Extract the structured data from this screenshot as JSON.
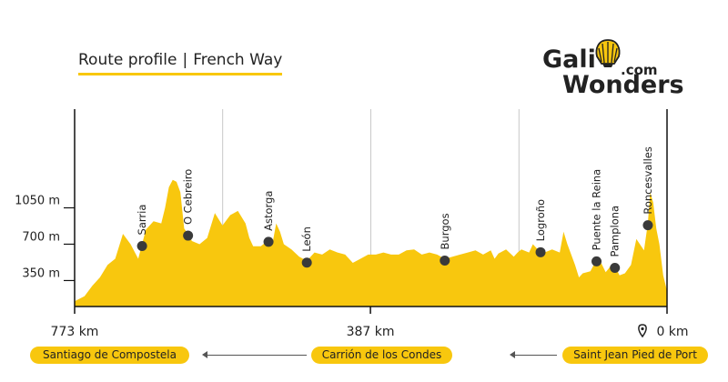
{
  "title_left": "Route profile",
  "title_sep": "|",
  "title_right": "French Way",
  "logo": {
    "word1": "Gali",
    "word2": "Wonders",
    "suffix": ".com"
  },
  "colors": {
    "fill": "#F8C70E",
    "marker": "#3A3A3A",
    "axis": "#111111",
    "grid": "#BBBBBB"
  },
  "route": {
    "start": "Saint Jean Pied de Port",
    "middle": "Carrión de los Condes",
    "end": "Santiago de Compostela"
  },
  "chart_data": {
    "type": "area",
    "x_axis": {
      "reversed": true,
      "range_km": [
        0,
        773
      ],
      "ticks": [
        773,
        387,
        0
      ],
      "tick_labels": [
        "773 km",
        "387 km",
        "0 km"
      ],
      "zero_icon": "location-pin-icon"
    },
    "y_axis": {
      "ticks": [
        350,
        700,
        1050
      ],
      "tick_labels": [
        "350 m",
        "700 m",
        "1050 m"
      ],
      "range_m": [
        100,
        2000
      ]
    },
    "grid": true,
    "profile": {
      "km": [
        0,
        5,
        10,
        14,
        18,
        22,
        25,
        30,
        40,
        47,
        55,
        62,
        70,
        80,
        90,
        100,
        110,
        115,
        120,
        125,
        130,
        135,
        140,
        150,
        160,
        170,
        175,
        180,
        190,
        195,
        200,
        210,
        220,
        225,
        230,
        240,
        250,
        260,
        270,
        280,
        290,
        300,
        310,
        320,
        330,
        340,
        350,
        360,
        370,
        380,
        390,
        400,
        410,
        420,
        430,
        440,
        450,
        460,
        470,
        480,
        490,
        500,
        505,
        510,
        515,
        520,
        530,
        540,
        545,
        550,
        560,
        570,
        580,
        590,
        600,
        610,
        620,
        625,
        630,
        635,
        640,
        645,
        650,
        655,
        660,
        670,
        680,
        690,
        700,
        710,
        720,
        730,
        740,
        750,
        760,
        773
      ],
      "elev": [
        250,
        400,
        700,
        850,
        1100,
        1200,
        900,
        640,
        750,
        500,
        420,
        400,
        520,
        430,
        580,
        440,
        420,
        380,
        500,
        600,
        700,
        820,
        620,
        650,
        620,
        660,
        700,
        620,
        650,
        620,
        580,
        650,
        610,
        560,
        640,
        600,
        640,
        620,
        600,
        580,
        560,
        600,
        620,
        600,
        650,
        640,
        600,
        600,
        620,
        600,
        600,
        560,
        520,
        600,
        620,
        650,
        600,
        620,
        540,
        580,
        650,
        700,
        820,
        900,
        700,
        740,
        680,
        680,
        760,
        900,
        1020,
        980,
        880,
        1000,
        760,
        700,
        730,
        800,
        850,
        1200,
        1300,
        1320,
        1250,
        1050,
        900,
        920,
        840,
        560,
        700,
        800,
        560,
        500,
        380,
        300,
        200,
        150
      ]
    },
    "stages": [
      {
        "name": "Roncesvalles",
        "km": 25
      },
      {
        "name": "Pamplona",
        "km": 68
      },
      {
        "name": "Puente la Reina",
        "km": 92
      },
      {
        "name": "Logroño",
        "km": 165
      },
      {
        "name": "Burgos",
        "km": 290
      },
      {
        "name": "León",
        "km": 470
      },
      {
        "name": "Astorga",
        "km": 520
      },
      {
        "name": "O Cebreiro",
        "km": 625
      },
      {
        "name": "Sarria",
        "km": 685
      }
    ]
  }
}
